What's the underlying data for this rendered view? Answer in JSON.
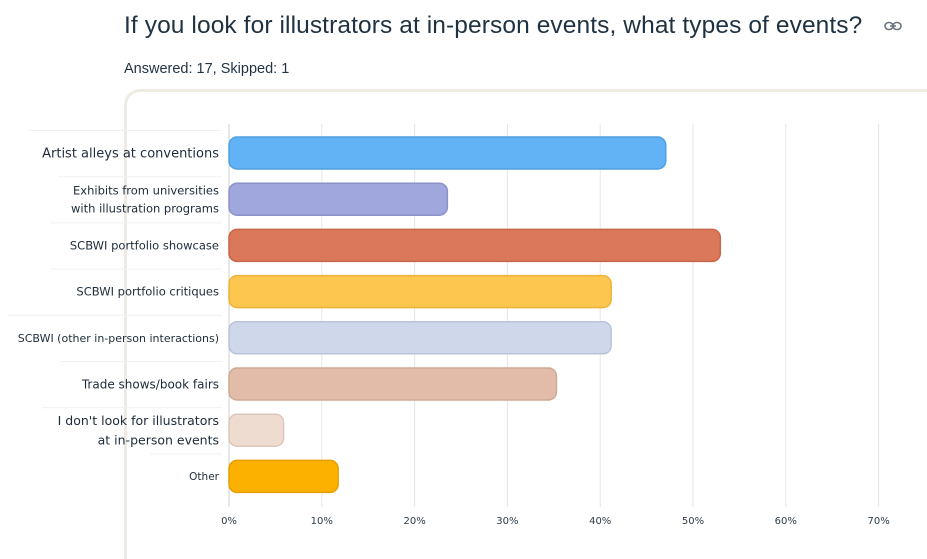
{
  "question": {
    "title": "If you look for illustrators at in-person events, what types of events?",
    "answered_label": "Answered: 17",
    "skipped_label": "Skipped: 1"
  },
  "icons": {
    "link": "link-icon"
  },
  "colors": {
    "grid": "#e6e6e6",
    "axis": "#cfcfcf",
    "panel_border": "#eeebe2"
  },
  "chart_data": {
    "type": "bar",
    "orientation": "horizontal",
    "categories": [
      "Artist alleys at conventions",
      "Exhibits from universities with illustration programs",
      "SCBWI portfolio showcase",
      "SCBWI portfolio critiques",
      "SCBWI (other in-person interactions)",
      "Trade shows/book fairs",
      "I don't look for illustrators at in-person events",
      "Other"
    ],
    "category_lines": [
      [
        "Artist alleys at conventions"
      ],
      [
        "Exhibits from universities",
        "with illustration programs"
      ],
      [
        "SCBWI portfolio showcase"
      ],
      [
        "SCBWI portfolio critiques"
      ],
      [
        "SCBWI (other in-person interactions)"
      ],
      [
        "Trade shows/book fairs"
      ],
      [
        "I don't look for illustrators",
        "at in-person events"
      ],
      [
        "Other"
      ]
    ],
    "values": [
      47.06,
      23.53,
      52.94,
      41.18,
      41.18,
      35.29,
      5.88,
      11.76
    ],
    "bar_colors": [
      "#62b3f5",
      "#9fa7dc",
      "#dc785a",
      "#fdc74f",
      "#ced8ea",
      "#e2bca9",
      "#efdcd0",
      "#fcb000"
    ],
    "bar_borders": [
      "#4f9fe0",
      "#8a92c9",
      "#c8654a",
      "#eab43c",
      "#b9c4d8",
      "#cfa896",
      "#dcc7ba",
      "#e59f00"
    ],
    "xlim": [
      0,
      75
    ],
    "xticks": [
      0,
      10,
      20,
      30,
      40,
      50,
      60,
      70
    ],
    "xtick_labels": [
      "0%",
      "10%",
      "20%",
      "30%",
      "40%",
      "50%",
      "60%",
      "70%"
    ],
    "grid": true,
    "title": "",
    "xlabel": "",
    "ylabel": ""
  }
}
